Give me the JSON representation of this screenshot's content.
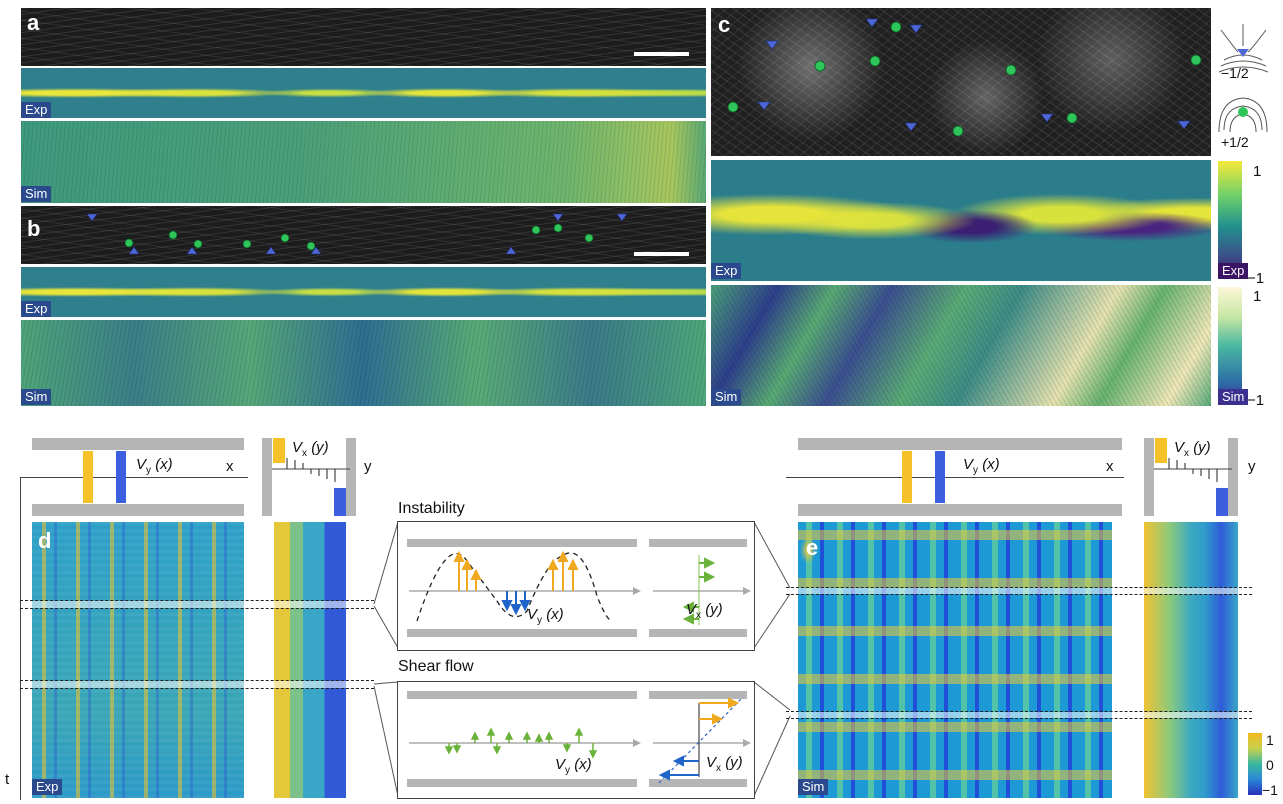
{
  "panels": {
    "a": {
      "label": "a",
      "tags": [
        "Exp",
        "Sim"
      ]
    },
    "b": {
      "label": "b",
      "tags": [
        "Exp",
        "Sim"
      ]
    },
    "c": {
      "label": "c",
      "tags": [
        "Exp",
        "Sim"
      ],
      "defects": [
        "−1/2",
        "+1/2"
      ],
      "colorbar_exp": {
        "top": "1",
        "bottom": "−1",
        "label": "Exp"
      },
      "colorbar_sim": {
        "top": "1",
        "bottom": "−1",
        "label": "Sim"
      }
    },
    "d": {
      "label": "d",
      "tag": "Exp"
    },
    "e": {
      "label": "e",
      "tag": "Sim"
    }
  },
  "schematics": {
    "vy_label": "V",
    "vy_sub": "y",
    "vy_arg": "(x)",
    "vx_label": "V",
    "vx_sub": "x",
    "vx_arg": "(y)",
    "x_axis": "x",
    "y_axis": "y",
    "t_axis": "t"
  },
  "insets": {
    "instability": {
      "title": "Instability"
    },
    "shear": {
      "title": "Shear flow"
    }
  },
  "colorbar_e": {
    "top": "1",
    "mid": "0",
    "bottom": "−1"
  },
  "colors": {
    "yellow": "#f5c028",
    "blue": "#3c5fe0",
    "green_defect": "#2ec55a",
    "blue_defect": "#3f52c8",
    "gray": "#b5b5b5"
  }
}
